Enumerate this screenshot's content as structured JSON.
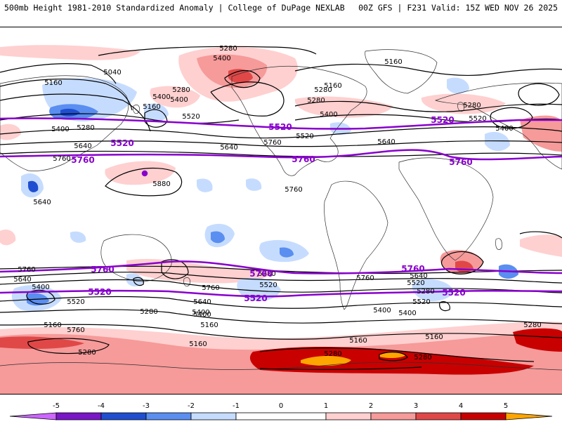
{
  "header": {
    "title_left": "500mb Height 1981-2010 Standardized Anomaly | College of DuPage NEXLAB",
    "title_right": "00Z GFS | F231 Valid: 15Z WED NOV 26 2025"
  },
  "colors": {
    "ocean": "#ffffff",
    "coast": "#303030",
    "contour": "#000000",
    "highlight_contour": "#8800cc",
    "bin_neg5": "#cc66ff",
    "bin_neg4": "#7a16c7",
    "bin_neg3": "#1f4fd0",
    "bin_neg2": "#5a8ef0",
    "bin_neg1": "#c6dcff",
    "bin_pos1": "#ffd0d0",
    "bin_pos2": "#f69a9a",
    "bin_pos3": "#e04848",
    "bin_pos4": "#c80000",
    "bin_pos5": "#ffa500"
  },
  "colorbar": {
    "ticks": [
      "-5",
      "-4",
      "-3",
      "-2",
      "-1",
      "0",
      "1",
      "2",
      "3",
      "4",
      "5"
    ]
  },
  "contour_labels": {
    "l5280_a": "5280",
    "l5400_a": "5400",
    "l5040": "5040",
    "l5160_a": "5160",
    "l5280_b": "5280",
    "l5400_b": "5400",
    "l5160_b": "5160",
    "l5520_a": "5520",
    "l5400_c": "5400",
    "l5280_c": "5280",
    "l5640_a": "5640",
    "l5760_a": "5760",
    "l5880": "5880",
    "l5640_b": "5640",
    "l5760_b": "5760",
    "l5520_b": "5520",
    "l5400_d": "5400",
    "l5160_c": "5160",
    "l5280_d": "5280",
    "l5160_d": "5160",
    "l5280_e": "5280",
    "l5400_e": "5400",
    "l5640_c": "5640",
    "l5160_e": "5160",
    "l5280_f": "5280",
    "l5760_c": "5760",
    "l5640_d": "5640",
    "l5400_f": "5400",
    "l5520_c": "5520",
    "l5400_g": "5400",
    "l5280_g": "5280",
    "l5160_f": "5160",
    "l5760_d": "5760",
    "l5640_e": "5640",
    "l5520_d": "5520",
    "l5520_e": "5520",
    "l5280_h": "5280",
    "l5400_h": "5400",
    "l5280_i": "5280",
    "l5160_g": "5160",
    "l5160_h": "5160",
    "l5280_j": "5280",
    "l5280_k": "5280",
    "l5280_l": "5280",
    "l5160_i": "5160",
    "l5400_i": "5400",
    "l5400_j": "5400",
    "l5520_f": "5520",
    "l5640_f": "5640",
    "l5760_e": "5760",
    "l5520_g": "5520",
    "l5400_k": "5400",
    "l5280_m": "5280",
    "l5640_g": "5640",
    "l5760_f": "5760",
    "l5760_g": "5760",
    "l5280_n": "5280"
  },
  "highlight_labels": {
    "n5520_a": "5520",
    "n5520_b": "5520",
    "n5520_c": "5520",
    "n5760_a": "5760",
    "n5760_b": "5760",
    "n5760_c": "5760",
    "s5760_a": "5760",
    "s5760_b": "5760",
    "s5760_c": "5760",
    "s5520_a": "5520",
    "s5520_b": "5520",
    "s5520_c": "5520"
  }
}
